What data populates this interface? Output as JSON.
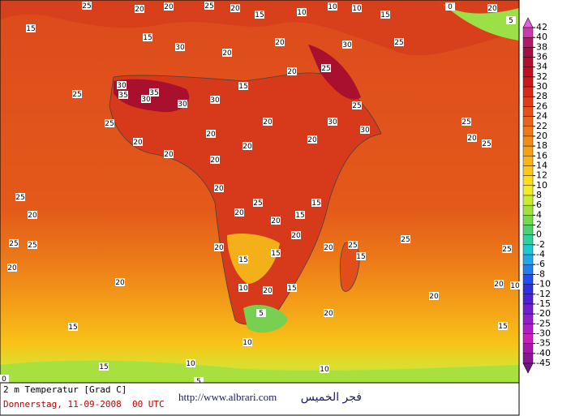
{
  "title": "2 m Temperatur [Grad C]",
  "date": "Donnerstag, 11-09-2008  00 UTC",
  "url": "http://www.albrari.com",
  "arabic_caption": "فجر الخميس",
  "colorbar": {
    "levels": [
      42,
      40,
      38,
      36,
      34,
      32,
      30,
      28,
      26,
      24,
      22,
      20,
      18,
      16,
      14,
      12,
      10,
      8,
      6,
      4,
      2,
      0,
      -2,
      -4,
      -6,
      -8,
      -10,
      -12,
      -15,
      -20,
      -25,
      -30,
      -35,
      -40,
      -45
    ],
    "colors": [
      "#e860e0",
      "#c83ca8",
      "#b0186c",
      "#a01040",
      "#b01030",
      "#c01020",
      "#cc1818",
      "#d82818",
      "#e03c18",
      "#e45018",
      "#e86418",
      "#ec7818",
      "#f08c18",
      "#f4a018",
      "#f8b418",
      "#fcc818",
      "#fcdc20",
      "#f0ec28",
      "#c8ec30",
      "#a0e040",
      "#78d850",
      "#50d070",
      "#30d0a0",
      "#20c8d0",
      "#20a8e8",
      "#2080f0",
      "#2050f0",
      "#3030e0",
      "#5020d8",
      "#7020d0",
      "#9020c8",
      "#b020c0",
      "#c820b8",
      "#a818a8",
      "#881890",
      "#701880"
    ]
  },
  "map_labels": [
    25,
    20,
    20,
    25,
    20,
    15,
    10,
    10,
    10,
    15,
    0,
    20,
    5,
    15,
    15,
    30,
    20,
    20,
    30,
    25,
    30,
    35,
    30,
    35,
    30,
    30,
    15,
    20,
    25,
    25,
    25,
    25,
    20,
    20,
    20,
    20,
    20,
    30,
    30,
    25,
    20,
    25,
    20,
    20,
    20,
    25,
    20,
    20,
    15,
    15,
    25,
    20,
    25,
    25,
    20,
    15,
    15,
    20,
    20,
    25,
    15,
    25,
    25,
    20,
    20,
    10,
    20,
    15,
    20,
    20,
    10,
    5,
    20,
    15,
    15,
    10,
    15,
    10,
    10,
    0,
    5
  ]
}
